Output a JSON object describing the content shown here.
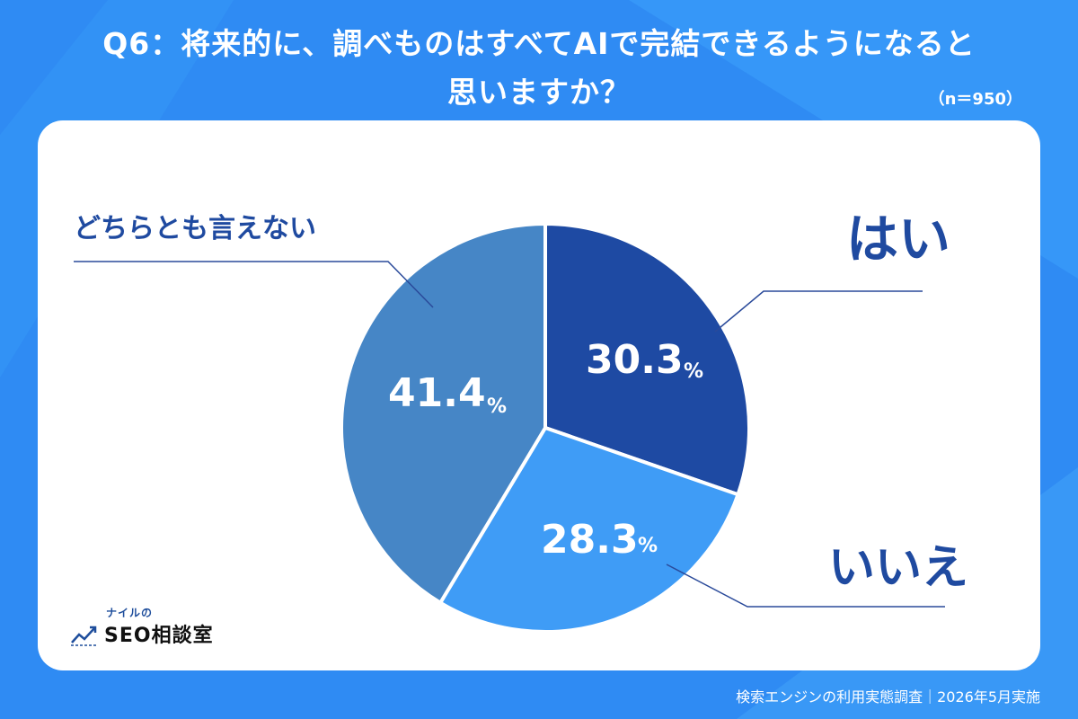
{
  "title": {
    "line1": "Q6：将来的に、調べものはすべてAIで完結できるようになると",
    "line2": "思いますか？"
  },
  "sample": "（n＝950）",
  "footer": "検索エンジンの利用実態調査｜2026年5月実施",
  "logo": {
    "small": "ナイルの",
    "main": "SEO相談室"
  },
  "colors": {
    "background": "#2f8bf3",
    "card": "#ffffff",
    "label_text": "#1f4aa0",
    "leader_line": "#2a4a9a"
  },
  "chart_data": {
    "type": "pie",
    "title": "Q6：将来的に、調べものはすべてAIで完結できるようになると思いますか？",
    "unit": "%",
    "slices": [
      {
        "label": "はい",
        "value": 30.3,
        "color": "#1e4aa3"
      },
      {
        "label": "いいえ",
        "value": 28.3,
        "color": "#3f9cf6"
      },
      {
        "label": "どちらとも言えない",
        "value": 41.4,
        "color": "#4686c6"
      }
    ]
  }
}
